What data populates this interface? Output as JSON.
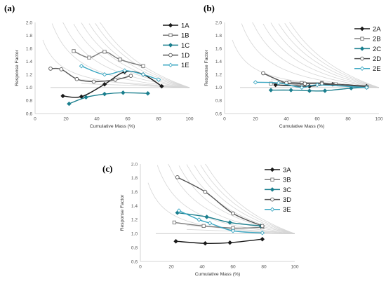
{
  "colors": {
    "black": "#1a1a1a",
    "open_gray": "#7a7a7a",
    "teal": "#1b7f8e",
    "dark_gray": "#555555",
    "light_teal": "#3aa6c1",
    "guide": "#d6d6d6",
    "axis": "#c8c8c8"
  },
  "chart_data": [
    {
      "type": "line",
      "panel_label": "(a)",
      "xlabel": "Cumulative Mass (%)",
      "ylabel": "Response Factor",
      "xlim": [
        0,
        100
      ],
      "ylim": [
        0.6,
        2.0
      ],
      "xticks": [
        "0",
        "20",
        "40",
        "60",
        "80",
        "100"
      ],
      "yticks": [
        "0.6",
        "0.8",
        "1.0",
        "1.2",
        "1.4",
        "1.6",
        "1.8",
        "2.0"
      ],
      "grid": false,
      "legend": "top-right",
      "series": [
        {
          "name": "1A",
          "marker": "filled-diamond",
          "x": [
            18,
            30,
            45,
            58,
            70,
            82
          ],
          "y": [
            0.87,
            0.86,
            1.05,
            1.24,
            1.2,
            1.02
          ]
        },
        {
          "name": "1B",
          "marker": "open-square",
          "x": [
            25,
            35,
            45,
            55,
            70
          ],
          "y": [
            1.56,
            1.46,
            1.55,
            1.43,
            1.33
          ]
        },
        {
          "name": "1C",
          "marker": "filled-diamond",
          "x": [
            22,
            33,
            45,
            57,
            73
          ],
          "y": [
            0.75,
            0.85,
            0.9,
            0.92,
            0.91
          ]
        },
        {
          "name": "1D",
          "marker": "open-circle",
          "x": [
            10,
            17,
            27,
            38,
            52,
            62
          ],
          "y": [
            1.29,
            1.28,
            1.13,
            1.09,
            1.12,
            1.18
          ]
        },
        {
          "name": "1E",
          "marker": "open-diamond",
          "x": [
            30,
            45,
            58,
            70,
            80
          ],
          "y": [
            1.33,
            1.2,
            1.26,
            1.2,
            1.12
          ]
        }
      ]
    },
    {
      "type": "line",
      "panel_label": "(b)",
      "xlabel": "Cumulative Mass (%)",
      "ylabel": "Response Factor",
      "xlim": [
        0,
        100
      ],
      "ylim": [
        0.6,
        2.0
      ],
      "xticks": [
        "0",
        "20",
        "40",
        "60",
        "80",
        "100"
      ],
      "yticks": [
        "0.6",
        "0.8",
        "1.0",
        "1.2",
        "1.4",
        "1.6",
        "1.8",
        "2.0"
      ],
      "grid": false,
      "legend": "top-right",
      "series": [
        {
          "name": "2A",
          "marker": "filled-diamond",
          "x": [
            33,
            55,
            70,
            92
          ],
          "y": [
            1.04,
            1.02,
            1.05,
            1.02
          ]
        },
        {
          "name": "2B",
          "marker": "open-square",
          "x": [
            30,
            42,
            50,
            63,
            72,
            92
          ],
          "y": [
            1.06,
            1.08,
            1.07,
            1.07,
            1.05,
            1.01
          ]
        },
        {
          "name": "2C",
          "marker": "filled-diamond",
          "x": [
            30,
            43,
            55,
            65,
            82,
            92
          ],
          "y": [
            0.96,
            0.96,
            0.95,
            0.95,
            0.99,
            1.0
          ]
        },
        {
          "name": "2D",
          "marker": "open-circle",
          "x": [
            25,
            40,
            52,
            63,
            92
          ],
          "y": [
            1.22,
            1.07,
            1.06,
            1.06,
            1.01
          ]
        },
        {
          "name": "2E",
          "marker": "open-diamond",
          "x": [
            20,
            35,
            50,
            60,
            92
          ],
          "y": [
            1.08,
            1.07,
            1.0,
            1.04,
            1.0
          ]
        }
      ]
    },
    {
      "type": "line",
      "panel_label": "(c)",
      "xlabel": "Cumulative Mass (%)",
      "ylabel": "Response Factor",
      "xlim": [
        0,
        100
      ],
      "ylim": [
        0.6,
        2.0
      ],
      "xticks": [
        "0",
        "20",
        "40",
        "60",
        "80",
        "100"
      ],
      "yticks": [
        "0.6",
        "0.8",
        "1.0",
        "1.2",
        "1.4",
        "1.6",
        "1.8",
        "2.0"
      ],
      "grid": false,
      "legend": "top-right",
      "series": [
        {
          "name": "3A",
          "marker": "filled-diamond",
          "x": [
            23,
            42,
            58,
            79
          ],
          "y": [
            0.89,
            0.86,
            0.87,
            0.92
          ]
        },
        {
          "name": "3B",
          "marker": "open-square",
          "x": [
            22,
            41,
            60,
            79
          ],
          "y": [
            1.16,
            1.11,
            1.08,
            1.09
          ]
        },
        {
          "name": "3C",
          "marker": "filled-diamond",
          "x": [
            24,
            43,
            58,
            78
          ],
          "y": [
            1.3,
            1.24,
            1.16,
            1.11
          ]
        },
        {
          "name": "3D",
          "marker": "open-circle",
          "x": [
            24,
            42,
            60,
            79
          ],
          "y": [
            1.81,
            1.6,
            1.29,
            1.11
          ]
        },
        {
          "name": "3E",
          "marker": "open-diamond",
          "x": [
            25,
            38,
            45,
            60,
            79
          ],
          "y": [
            1.33,
            1.2,
            1.15,
            1.04,
            1.01
          ]
        }
      ]
    }
  ]
}
